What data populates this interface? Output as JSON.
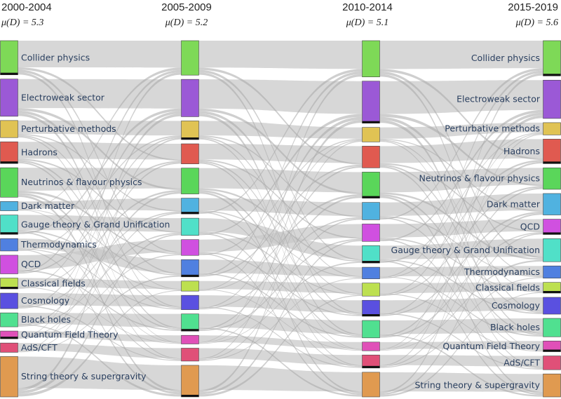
{
  "columns": [
    {
      "title": "2000-2004",
      "subtitle": "μ(D) = 5.3"
    },
    {
      "title": "2005-2009",
      "subtitle": "μ(D) = 5.2"
    },
    {
      "title": "2010-2014",
      "subtitle": "μ(D) = 5.1"
    },
    {
      "title": "2015-2019",
      "subtitle": "μ(D) = 5.6"
    }
  ],
  "topics": [
    {
      "id": "collider",
      "label": "Collider physics",
      "color": "#7ed957"
    },
    {
      "id": "electroweak",
      "label": "Electroweak sector",
      "color": "#9b59d6"
    },
    {
      "id": "perturbative",
      "label": "Perturbative methods",
      "color": "#e0c354"
    },
    {
      "id": "hadrons",
      "label": "Hadrons",
      "color": "#e05a50"
    },
    {
      "id": "neutrinos",
      "label": "Neutrinos & flavour physics",
      "color": "#5ad65a"
    },
    {
      "id": "darkmatter",
      "label": "Dark matter",
      "color": "#50b2e0"
    },
    {
      "id": "gauge",
      "label": "Gauge theory & Grand Unification",
      "color": "#50e0c8"
    },
    {
      "id": "thermo",
      "label": "Thermodynamics",
      "color": "#5080e0"
    },
    {
      "id": "qcd",
      "label": "QCD",
      "color": "#d050e0"
    },
    {
      "id": "classical",
      "label": "Classical fields",
      "color": "#bde050"
    },
    {
      "id": "cosmology",
      "label": "Cosmology",
      "color": "#5a50e0"
    },
    {
      "id": "blackholes",
      "label": "Black holes",
      "color": "#50e090"
    },
    {
      "id": "qft",
      "label": "Quantum Field Theory",
      "color": "#e050b8"
    },
    {
      "id": "adscft",
      "label": "AdS/CFT",
      "color": "#e05078"
    },
    {
      "id": "string",
      "label": "String theory & supergravity",
      "color": "#e09a50"
    }
  ],
  "orders": [
    [
      "collider",
      "electroweak",
      "perturbative",
      "hadrons",
      "neutrinos",
      "darkmatter",
      "gauge",
      "thermo",
      "qcd",
      "classical",
      "cosmology",
      "blackholes",
      "qft",
      "adscft",
      "string"
    ],
    [
      "collider",
      "electroweak",
      "perturbative",
      "hadrons",
      "neutrinos",
      "darkmatter",
      "gauge",
      "qcd",
      "thermo",
      "classical",
      "cosmology",
      "blackholes",
      "qft",
      "adscft",
      "string"
    ],
    [
      "collider",
      "electroweak",
      "perturbative",
      "hadrons",
      "neutrinos",
      "darkmatter",
      "qcd",
      "gauge",
      "thermo",
      "classical",
      "cosmology",
      "blackholes",
      "qft",
      "adscft",
      "string"
    ],
    [
      "collider",
      "electroweak",
      "perturbative",
      "hadrons",
      "neutrinos",
      "darkmatter",
      "qcd",
      "gauge",
      "thermo",
      "classical",
      "cosmology",
      "blackholes",
      "qft",
      "adscft",
      "string"
    ]
  ],
  "weights": [
    [
      44,
      48,
      22,
      28,
      38,
      12,
      25,
      16,
      24,
      14,
      20,
      18,
      10,
      12,
      52
    ],
    [
      48,
      52,
      26,
      28,
      36,
      22,
      24,
      22,
      24,
      14,
      20,
      24,
      12,
      18,
      44
    ],
    [
      50,
      58,
      20,
      30,
      36,
      24,
      24,
      24,
      16,
      18,
      22,
      24,
      12,
      18,
      34
    ],
    [
      46,
      50,
      16,
      32,
      28,
      28,
      20,
      30,
      16,
      14,
      22,
      24,
      14,
      18,
      30
    ]
  ]
}
